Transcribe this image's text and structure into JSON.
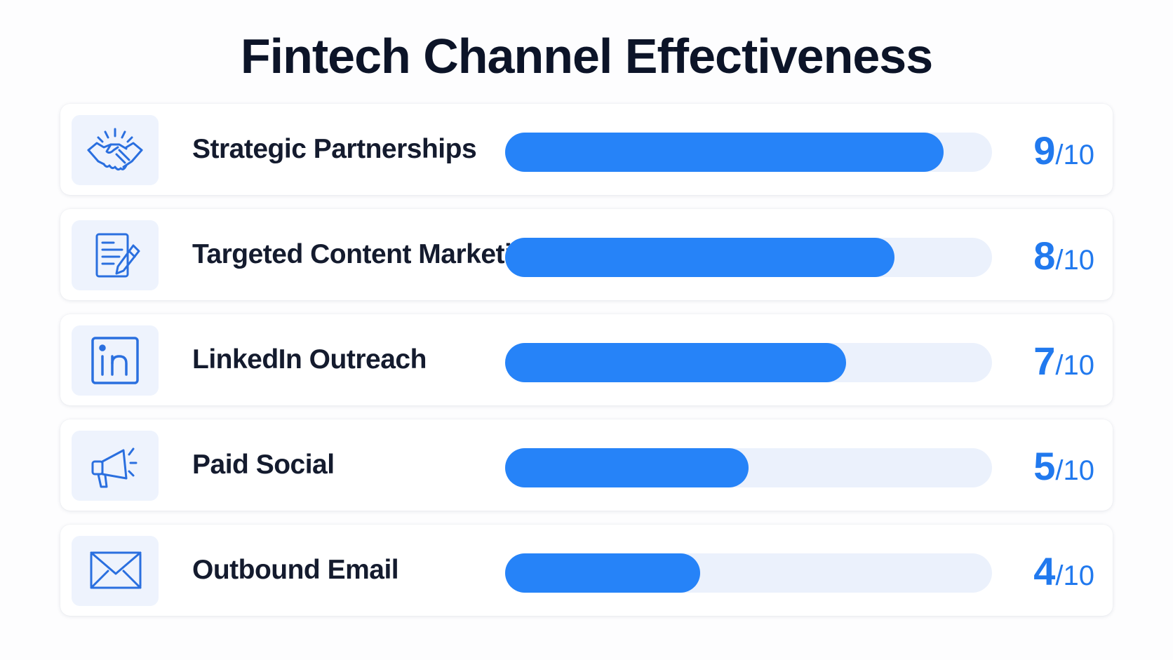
{
  "title": "Fintech Channel Effectiveness",
  "accent_color": "#2683f8",
  "track_color": "#ebf1fc",
  "chart_data": {
    "type": "bar",
    "orientation": "horizontal",
    "title": "Fintech Channel Effectiveness",
    "categories": [
      "Strategic Partnerships",
      "Targeted Content Marketing",
      "LinkedIn Outreach",
      "Paid Social",
      "Outbound Email"
    ],
    "values": [
      9,
      8,
      7,
      5,
      4
    ],
    "xlim": [
      0,
      10
    ],
    "max": 10,
    "grid": false
  },
  "rows": [
    {
      "label": "Strategic Partnerships",
      "icon": "handshake-icon",
      "score": "9",
      "sep": "/",
      "max": "10"
    },
    {
      "label": "Targeted Content Marketing",
      "icon": "document-pen-icon",
      "score": "8",
      "sep": "/",
      "max": "10"
    },
    {
      "label": "LinkedIn Outreach",
      "icon": "linkedin-icon",
      "score": "7",
      "sep": "/",
      "max": "10"
    },
    {
      "label": "Paid Social",
      "icon": "megaphone-icon",
      "score": "5",
      "sep": "/",
      "max": "10"
    },
    {
      "label": "Outbound Email",
      "icon": "envelope-icon",
      "score": "4",
      "sep": "/",
      "max": "10"
    }
  ]
}
